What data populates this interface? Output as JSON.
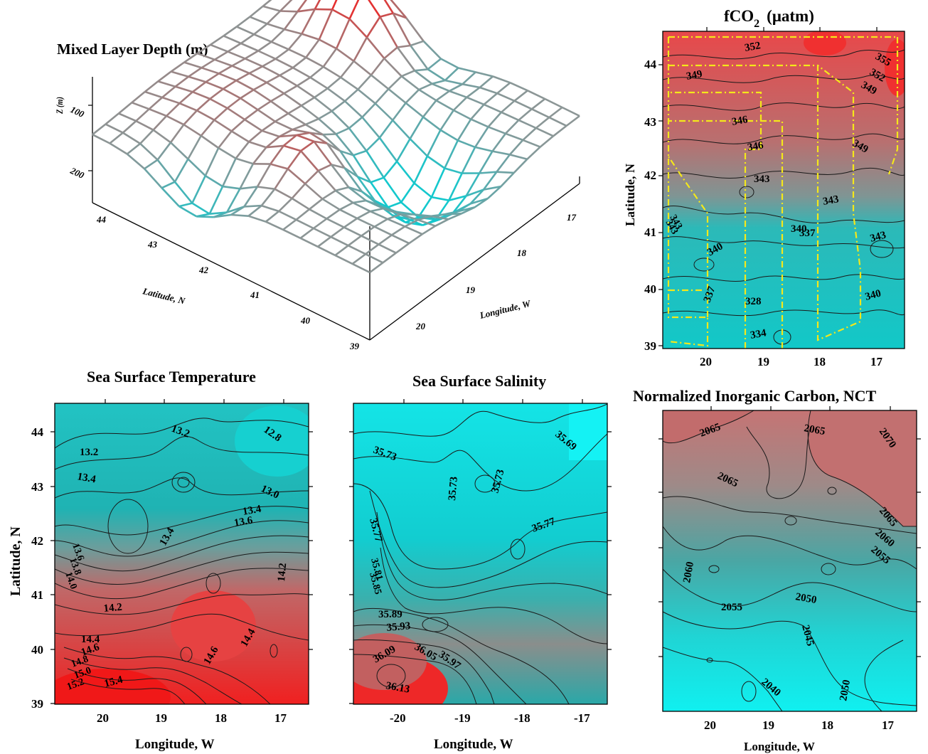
{
  "colors": {
    "cold": "#00e8ec",
    "mid": "#8b9a99",
    "warm": "#f02822",
    "track": "#f4e81a"
  },
  "panels": {
    "mld": {
      "title": "Mixed Layer Depth (m)",
      "zlabel": "Z (m)",
      "xlabel": "Latitude, N",
      "ylabel": "Longitude, W",
      "zticks": [
        "100",
        "200"
      ],
      "lat_ticks": [
        "44",
        "43",
        "42",
        "41",
        "40",
        "39"
      ],
      "lon_ticks": [
        "20",
        "19",
        "18",
        "17"
      ]
    },
    "fco2": {
      "title_main": "fCO",
      "title_sub": "2",
      "title_unit": "(μatm)",
      "ylabel": "Latitude, N",
      "xticks": [
        "20",
        "19",
        "18",
        "17"
      ],
      "yticks": [
        "44",
        "43",
        "42",
        "41",
        "40",
        "39"
      ],
      "contour_labels": [
        "352",
        "355",
        "349",
        "352",
        "349",
        "346",
        "346",
        "349",
        "343",
        "343",
        "343",
        "340",
        "337",
        "340",
        "328",
        "334",
        "337",
        "340",
        "343",
        "343"
      ]
    },
    "sst": {
      "title": "Sea Surface Temperature",
      "xlabel": "Longitude, W",
      "ylabel": "Latitude, N",
      "xticks": [
        "20",
        "19",
        "18",
        "17"
      ],
      "yticks": [
        "44",
        "43",
        "42",
        "41",
        "40",
        "39"
      ],
      "contour_labels": [
        "13.2",
        "12.8",
        "13.2",
        "13.4",
        "13.0",
        "13.4",
        "13.6",
        "13.4",
        "13.6",
        "13.8",
        "14.0",
        "14.2",
        "14.2",
        "14.4",
        "14.6",
        "14.8",
        "15.0",
        "15.2",
        "14.6",
        "14.4",
        "15.4"
      ]
    },
    "sss": {
      "title": "Sea Surface Salinity",
      "xlabel": "Longitude, W",
      "xticks": [
        "-20",
        "-19",
        "-18",
        "-17"
      ],
      "contour_labels": [
        "35.73",
        "35.69",
        "35.73",
        "35.73",
        "35.77",
        "35.77",
        "35.81",
        "35.85",
        "35.89",
        "35.93",
        "36.09",
        "36.05",
        "35.97",
        "36.13"
      ]
    },
    "nct": {
      "title": "Normalized Inorganic Carbon, NCT",
      "xlabel": "Longitude, W",
      "xticks": [
        "20",
        "19",
        "18",
        "17"
      ],
      "contour_labels": [
        "2065",
        "2065",
        "2070",
        "2065",
        "2065",
        "2060",
        "2055",
        "2060",
        "2055",
        "2050",
        "2045",
        "2040",
        "2050"
      ]
    }
  },
  "chart_data": [
    {
      "type": "surface",
      "title": "Mixed Layer Depth (m)",
      "zlabel": "Z (m)",
      "xlabel": "Latitude, N",
      "ylabel": "Longitude, W",
      "lat_range": [
        39,
        44.5
      ],
      "lon_range": [
        17,
        20.5
      ],
      "zticks": [
        100,
        200
      ]
    },
    {
      "type": "heatmap",
      "title": "fCO2 (μatm)",
      "ylabel": "Latitude, N",
      "xlim": [
        20.7,
        16.6
      ],
      "ylim": [
        39,
        44.5
      ]
    },
    {
      "type": "heatmap",
      "title": "Sea Surface Temperature",
      "xlabel": "Longitude, W",
      "ylabel": "Latitude, N",
      "xlim": [
        20.9,
        16.6
      ],
      "ylim": [
        39,
        44.5
      ]
    },
    {
      "type": "heatmap",
      "title": "Sea Surface Salinity",
      "xlabel": "Longitude, W",
      "xlim": [
        -20.9,
        -16.6
      ],
      "ylim": [
        39,
        44.5
      ]
    },
    {
      "type": "heatmap",
      "title": "Normalized Inorganic Carbon, NCT",
      "xlabel": "Longitude, W",
      "xlim": [
        20.9,
        16.6
      ],
      "ylim": [
        39,
        44.5
      ]
    }
  ]
}
